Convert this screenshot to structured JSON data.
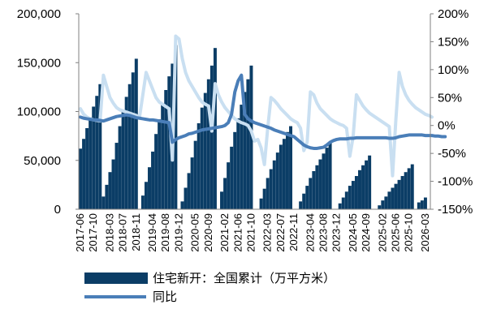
{
  "chart_data": {
    "type": "bar+line",
    "title": "",
    "x_tick_labels": [
      "2017-06",
      "2017-10",
      "2018-03",
      "2018-07",
      "2018-11",
      "2019-04",
      "2019-08",
      "2019-12",
      "2020-05",
      "2020-09",
      "2021-02",
      "2021-06",
      "2021-10",
      "2022-03",
      "2022-07",
      "2022-11",
      "2023-04",
      "2023-08",
      "2023-12",
      "2024-05",
      "2024-09",
      "2025-02",
      "2025-06",
      "2025-10",
      "2026-03"
    ],
    "y_left": {
      "min": 0,
      "max": 200000,
      "ticks": [
        "0",
        "50,000",
        "100,000",
        "150,000",
        "200,000"
      ]
    },
    "y_right": {
      "min": -150,
      "max": 200,
      "unit": "%",
      "ticks": [
        "-150%",
        "-100%",
        "-50%",
        "0%",
        "50%",
        "100%",
        "150%",
        "200%"
      ]
    },
    "grid": false,
    "legend_position": "bottom-left",
    "series": [
      {
        "name": "住宅新开：全国累计（万平方米）",
        "type": "bar",
        "axis": "left",
        "color": "#0b3d66",
        "years": [
          {
            "start": "2017-06",
            "values": [
              62000,
              72000,
              83000,
              94000,
              105000,
              116000,
              128000
            ]
          },
          {
            "start": "2018-01",
            "values": [
              13000,
              25000,
              38000,
              51000,
              68000,
              85000,
              100000,
              115000,
              128000,
              140000,
              154000
            ]
          },
          {
            "start": "2019-01",
            "values": [
              14000,
              28000,
              43000,
              59000,
              77000,
              92000,
              107000,
              122000,
              136000,
              149000,
              168000
            ]
          },
          {
            "start": "2020-01",
            "values": [
              8000,
              22000,
              37000,
              53000,
              70000,
              88000,
              104000,
              119000,
              133000,
              147000,
              165000
            ]
          },
          {
            "start": "2021-01",
            "values": [
              18000,
              32000,
              48000,
              64000,
              79000,
              93000,
              107000,
              120000,
              133000,
              147000
            ]
          },
          {
            "start": "2022-01",
            "values": [
              11000,
              21000,
              32000,
              41000,
              50000,
              58000,
              66000,
              72000,
              79000,
              85000
            ]
          },
          {
            "start": "2023-01",
            "values": [
              8000,
              16000,
              24000,
              32000,
              39000,
              45000,
              51000,
              57000,
              63000,
              69000
            ]
          },
          {
            "start": "2024-01",
            "values": [
              6000,
              12000,
              18000,
              24000,
              29000,
              34000,
              40000,
              45000,
              50000,
              55000
            ]
          },
          {
            "start": "2025-01",
            "values": [
              4000,
              9000,
              13000,
              18000,
              22000,
              26000,
              30000,
              34000,
              38000,
              42000,
              46000
            ]
          },
          {
            "start": "2026-01",
            "values": [
              7000,
              9000,
              12000
            ]
          }
        ]
      },
      {
        "name": "同比",
        "type": "line",
        "axis": "right",
        "color": "#4a7eb8",
        "values": [
          15,
          13,
          12,
          11,
          10,
          10,
          9,
          8,
          10,
          12,
          14,
          16,
          17,
          18,
          19,
          18,
          16,
          14,
          13,
          12,
          11,
          10,
          10,
          9,
          8,
          7,
          6,
          5,
          -30,
          -25,
          -22,
          -20,
          -18,
          -15,
          -14,
          -12,
          -10,
          -8,
          -7,
          -6,
          -5,
          -4,
          -3,
          -2,
          0,
          5,
          20,
          60,
          80,
          90,
          20,
          12,
          8,
          5,
          3,
          1,
          -1,
          -3,
          -5,
          -8,
          -10,
          -12,
          -14,
          -16,
          -18,
          -20,
          -25,
          -30,
          -35,
          -38,
          -40,
          -41,
          -41,
          -40,
          -39,
          -35,
          -30,
          -27,
          -25,
          -24,
          -24,
          -24,
          -23,
          -23,
          -22,
          -22,
          -22,
          -22,
          -22,
          -22,
          -22,
          -22,
          -22,
          -22,
          -23,
          -23,
          -22,
          -20,
          -19,
          -18,
          -17,
          -17,
          -17,
          -17,
          -17,
          -18,
          -18,
          -18,
          -19,
          -19,
          -20,
          -20
        ]
      },
      {
        "name": "",
        "type": "line",
        "axis": "right",
        "color": "#c9dff1",
        "values": [
          30,
          20,
          15,
          12,
          10,
          9,
          8,
          90,
          70,
          50,
          40,
          32,
          28,
          26,
          24,
          22,
          20,
          18,
          15,
          55,
          95,
          80,
          65,
          50,
          42,
          38,
          34,
          30,
          -62,
          160,
          155,
          120,
          95,
          80,
          70,
          60,
          50,
          42,
          38,
          35,
          -10,
          75,
          55,
          42,
          32,
          25,
          18,
          12,
          8,
          5,
          3,
          0,
          -10,
          -28,
          -25,
          -40,
          -70,
          -5,
          50,
          45,
          38,
          30,
          24,
          18,
          12,
          8,
          5,
          -5,
          -45,
          -30,
          60,
          55,
          40,
          30,
          24,
          18,
          12,
          8,
          5,
          2,
          0,
          -5,
          -55,
          -20,
          55,
          45,
          35,
          28,
          22,
          18,
          14,
          10,
          6,
          2,
          -2,
          -90,
          10,
          95,
          70,
          55,
          45,
          38,
          32,
          28,
          24,
          20,
          18,
          15
        ]
      }
    ]
  }
}
